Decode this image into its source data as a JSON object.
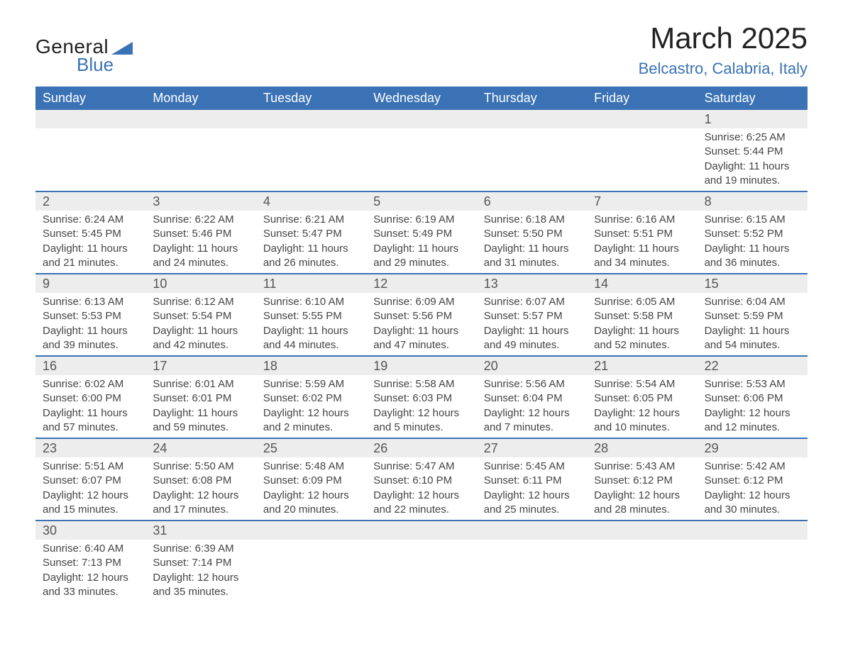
{
  "brand": {
    "general": "General",
    "blue": "Blue"
  },
  "title": {
    "month": "March 2025",
    "location": "Belcastro, Calabria, Italy"
  },
  "colors": {
    "header_bg": "#3a72b5",
    "header_text": "#ffffff",
    "date_bg": "#ededed",
    "row_border": "#3a72b5",
    "body_text": "#444444",
    "title_accent": "#3a72b5"
  },
  "weekdays": [
    "Sunday",
    "Monday",
    "Tuesday",
    "Wednesday",
    "Thursday",
    "Friday",
    "Saturday"
  ],
  "weeks": [
    {
      "dates": [
        "",
        "",
        "",
        "",
        "",
        "",
        "1"
      ],
      "cells": [
        null,
        null,
        null,
        null,
        null,
        null,
        {
          "sunrise": "Sunrise: 6:25 AM",
          "sunset": "Sunset: 5:44 PM",
          "day1": "Daylight: 11 hours",
          "day2": "and 19 minutes."
        }
      ]
    },
    {
      "dates": [
        "2",
        "3",
        "4",
        "5",
        "6",
        "7",
        "8"
      ],
      "cells": [
        {
          "sunrise": "Sunrise: 6:24 AM",
          "sunset": "Sunset: 5:45 PM",
          "day1": "Daylight: 11 hours",
          "day2": "and 21 minutes."
        },
        {
          "sunrise": "Sunrise: 6:22 AM",
          "sunset": "Sunset: 5:46 PM",
          "day1": "Daylight: 11 hours",
          "day2": "and 24 minutes."
        },
        {
          "sunrise": "Sunrise: 6:21 AM",
          "sunset": "Sunset: 5:47 PM",
          "day1": "Daylight: 11 hours",
          "day2": "and 26 minutes."
        },
        {
          "sunrise": "Sunrise: 6:19 AM",
          "sunset": "Sunset: 5:49 PM",
          "day1": "Daylight: 11 hours",
          "day2": "and 29 minutes."
        },
        {
          "sunrise": "Sunrise: 6:18 AM",
          "sunset": "Sunset: 5:50 PM",
          "day1": "Daylight: 11 hours",
          "day2": "and 31 minutes."
        },
        {
          "sunrise": "Sunrise: 6:16 AM",
          "sunset": "Sunset: 5:51 PM",
          "day1": "Daylight: 11 hours",
          "day2": "and 34 minutes."
        },
        {
          "sunrise": "Sunrise: 6:15 AM",
          "sunset": "Sunset: 5:52 PM",
          "day1": "Daylight: 11 hours",
          "day2": "and 36 minutes."
        }
      ]
    },
    {
      "dates": [
        "9",
        "10",
        "11",
        "12",
        "13",
        "14",
        "15"
      ],
      "cells": [
        {
          "sunrise": "Sunrise: 6:13 AM",
          "sunset": "Sunset: 5:53 PM",
          "day1": "Daylight: 11 hours",
          "day2": "and 39 minutes."
        },
        {
          "sunrise": "Sunrise: 6:12 AM",
          "sunset": "Sunset: 5:54 PM",
          "day1": "Daylight: 11 hours",
          "day2": "and 42 minutes."
        },
        {
          "sunrise": "Sunrise: 6:10 AM",
          "sunset": "Sunset: 5:55 PM",
          "day1": "Daylight: 11 hours",
          "day2": "and 44 minutes."
        },
        {
          "sunrise": "Sunrise: 6:09 AM",
          "sunset": "Sunset: 5:56 PM",
          "day1": "Daylight: 11 hours",
          "day2": "and 47 minutes."
        },
        {
          "sunrise": "Sunrise: 6:07 AM",
          "sunset": "Sunset: 5:57 PM",
          "day1": "Daylight: 11 hours",
          "day2": "and 49 minutes."
        },
        {
          "sunrise": "Sunrise: 6:05 AM",
          "sunset": "Sunset: 5:58 PM",
          "day1": "Daylight: 11 hours",
          "day2": "and 52 minutes."
        },
        {
          "sunrise": "Sunrise: 6:04 AM",
          "sunset": "Sunset: 5:59 PM",
          "day1": "Daylight: 11 hours",
          "day2": "and 54 minutes."
        }
      ]
    },
    {
      "dates": [
        "16",
        "17",
        "18",
        "19",
        "20",
        "21",
        "22"
      ],
      "cells": [
        {
          "sunrise": "Sunrise: 6:02 AM",
          "sunset": "Sunset: 6:00 PM",
          "day1": "Daylight: 11 hours",
          "day2": "and 57 minutes."
        },
        {
          "sunrise": "Sunrise: 6:01 AM",
          "sunset": "Sunset: 6:01 PM",
          "day1": "Daylight: 11 hours",
          "day2": "and 59 minutes."
        },
        {
          "sunrise": "Sunrise: 5:59 AM",
          "sunset": "Sunset: 6:02 PM",
          "day1": "Daylight: 12 hours",
          "day2": "and 2 minutes."
        },
        {
          "sunrise": "Sunrise: 5:58 AM",
          "sunset": "Sunset: 6:03 PM",
          "day1": "Daylight: 12 hours",
          "day2": "and 5 minutes."
        },
        {
          "sunrise": "Sunrise: 5:56 AM",
          "sunset": "Sunset: 6:04 PM",
          "day1": "Daylight: 12 hours",
          "day2": "and 7 minutes."
        },
        {
          "sunrise": "Sunrise: 5:54 AM",
          "sunset": "Sunset: 6:05 PM",
          "day1": "Daylight: 12 hours",
          "day2": "and 10 minutes."
        },
        {
          "sunrise": "Sunrise: 5:53 AM",
          "sunset": "Sunset: 6:06 PM",
          "day1": "Daylight: 12 hours",
          "day2": "and 12 minutes."
        }
      ]
    },
    {
      "dates": [
        "23",
        "24",
        "25",
        "26",
        "27",
        "28",
        "29"
      ],
      "cells": [
        {
          "sunrise": "Sunrise: 5:51 AM",
          "sunset": "Sunset: 6:07 PM",
          "day1": "Daylight: 12 hours",
          "day2": "and 15 minutes."
        },
        {
          "sunrise": "Sunrise: 5:50 AM",
          "sunset": "Sunset: 6:08 PM",
          "day1": "Daylight: 12 hours",
          "day2": "and 17 minutes."
        },
        {
          "sunrise": "Sunrise: 5:48 AM",
          "sunset": "Sunset: 6:09 PM",
          "day1": "Daylight: 12 hours",
          "day2": "and 20 minutes."
        },
        {
          "sunrise": "Sunrise: 5:47 AM",
          "sunset": "Sunset: 6:10 PM",
          "day1": "Daylight: 12 hours",
          "day2": "and 22 minutes."
        },
        {
          "sunrise": "Sunrise: 5:45 AM",
          "sunset": "Sunset: 6:11 PM",
          "day1": "Daylight: 12 hours",
          "day2": "and 25 minutes."
        },
        {
          "sunrise": "Sunrise: 5:43 AM",
          "sunset": "Sunset: 6:12 PM",
          "day1": "Daylight: 12 hours",
          "day2": "and 28 minutes."
        },
        {
          "sunrise": "Sunrise: 5:42 AM",
          "sunset": "Sunset: 6:12 PM",
          "day1": "Daylight: 12 hours",
          "day2": "and 30 minutes."
        }
      ]
    },
    {
      "dates": [
        "30",
        "31",
        "",
        "",
        "",
        "",
        ""
      ],
      "cells": [
        {
          "sunrise": "Sunrise: 6:40 AM",
          "sunset": "Sunset: 7:13 PM",
          "day1": "Daylight: 12 hours",
          "day2": "and 33 minutes."
        },
        {
          "sunrise": "Sunrise: 6:39 AM",
          "sunset": "Sunset: 7:14 PM",
          "day1": "Daylight: 12 hours",
          "day2": "and 35 minutes."
        },
        null,
        null,
        null,
        null,
        null
      ]
    }
  ]
}
